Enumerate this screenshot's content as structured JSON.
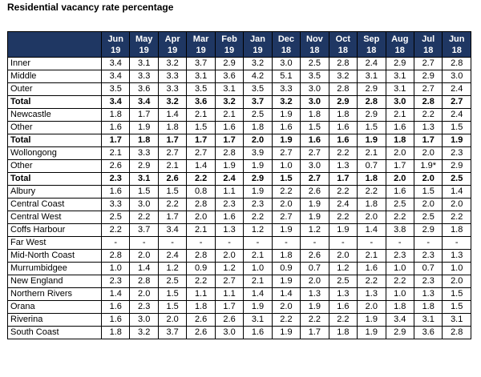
{
  "title": "Residential vacancy rate percentage",
  "columns": [
    [
      "Jun",
      "19"
    ],
    [
      "May",
      "19"
    ],
    [
      "Apr",
      "19"
    ],
    [
      "Mar",
      "19"
    ],
    [
      "Feb",
      "19"
    ],
    [
      "Jan",
      "19"
    ],
    [
      "Dec",
      "18"
    ],
    [
      "Nov",
      "18"
    ],
    [
      "Oct",
      "18"
    ],
    [
      "Sep",
      "18"
    ],
    [
      "Aug",
      "18"
    ],
    [
      "Jul",
      "18"
    ],
    [
      "Jun",
      "18"
    ]
  ],
  "rows": [
    {
      "label": "Inner",
      "total": false,
      "values": [
        "3.4",
        "3.1",
        "3.2",
        "3.7",
        "2.9",
        "3.2",
        "3.0",
        "2.5",
        "2.8",
        "2.4",
        "2.9",
        "2.7",
        "2.8"
      ]
    },
    {
      "label": "Middle",
      "total": false,
      "values": [
        "3.4",
        "3.3",
        "3.3",
        "3.1",
        "3.6",
        "4.2",
        "5.1",
        "3.5",
        "3.2",
        "3.1",
        "3.1",
        "2.9",
        "3.0"
      ]
    },
    {
      "label": "Outer",
      "total": false,
      "values": [
        "3.5",
        "3.6",
        "3.3",
        "3.5",
        "3.1",
        "3.5",
        "3.3",
        "3.0",
        "2.8",
        "2.9",
        "3.1",
        "2.7",
        "2.4"
      ]
    },
    {
      "label": "Total",
      "total": true,
      "values": [
        "3.4",
        "3.4",
        "3.2",
        "3.6",
        "3.2",
        "3.7",
        "3.2",
        "3.0",
        "2.9",
        "2.8",
        "3.0",
        "2.8",
        "2.7"
      ]
    },
    {
      "label": "Newcastle",
      "total": false,
      "values": [
        "1.8",
        "1.7",
        "1.4",
        "2.1",
        "2.1",
        "2.5",
        "1.9",
        "1.8",
        "1.8",
        "2.9",
        "2.1",
        "2.2",
        "2.4"
      ]
    },
    {
      "label": "Other",
      "total": false,
      "values": [
        "1.6",
        "1.9",
        "1.8",
        "1.5",
        "1.6",
        "1.8",
        "1.6",
        "1.5",
        "1.6",
        "1.5",
        "1.6",
        "1.3",
        "1.5"
      ]
    },
    {
      "label": "Total",
      "total": true,
      "values": [
        "1.7",
        "1.8",
        "1.7",
        "1.7",
        "1.7",
        "2.0",
        "1.9",
        "1.6",
        "1.6",
        "1.9",
        "1.8",
        "1.7",
        "1.9"
      ]
    },
    {
      "label": "Wollongong",
      "total": false,
      "values": [
        "2.1",
        "3.3",
        "2.7",
        "2.7",
        "2.8",
        "3.9",
        "2.7",
        "2.7",
        "2.2",
        "2.1",
        "2.0",
        "2.0",
        "2.3"
      ]
    },
    {
      "label": "Other",
      "total": false,
      "values": [
        "2.6",
        "2.9",
        "2.1",
        "1.4",
        "1.9",
        "1.9",
        "1.0",
        "3.0",
        "1.3",
        "0.7",
        "1.7",
        "1.9*",
        "2.9"
      ]
    },
    {
      "label": "Total",
      "total": true,
      "values": [
        "2.3",
        "3.1",
        "2.6",
        "2.2",
        "2.4",
        "2.9",
        "1.5",
        "2.7",
        "1.7",
        "1.8",
        "2.0",
        "2.0",
        "2.5"
      ]
    },
    {
      "label": "Albury",
      "total": false,
      "values": [
        "1.6",
        "1.5",
        "1.5",
        "0.8",
        "1.1",
        "1.9",
        "2.2",
        "2.6",
        "2.2",
        "2.2",
        "1.6",
        "1.5",
        "1.4"
      ]
    },
    {
      "label": "Central Coast",
      "total": false,
      "values": [
        "3.3",
        "3.0",
        "2.2",
        "2.8",
        "2.3",
        "2.3",
        "2.0",
        "1.9",
        "2.4",
        "1.8",
        "2.5",
        "2.0",
        "2.0"
      ]
    },
    {
      "label": "Central West",
      "total": false,
      "values": [
        "2.5",
        "2.2",
        "1.7",
        "2.0",
        "1.6",
        "2.2",
        "2.7",
        "1.9",
        "2.2",
        "2.0",
        "2.2",
        "2.5",
        "2.2"
      ]
    },
    {
      "label": "Coffs Harbour",
      "total": false,
      "values": [
        "2.2",
        "3.7",
        "3.4",
        "2.1",
        "1.3",
        "1.2",
        "1.9",
        "1.2",
        "1.9",
        "1.4",
        "3.8",
        "2.9",
        "1.8"
      ]
    },
    {
      "label": "Far West",
      "total": false,
      "values": [
        "-",
        "-",
        "-",
        "-",
        "-",
        "-",
        "-",
        "-",
        "-",
        "-",
        "-",
        "-",
        "-"
      ]
    },
    {
      "label": "Mid-North Coast",
      "total": false,
      "values": [
        "2.8",
        "2.0",
        "2.4",
        "2.8",
        "2.0",
        "2.1",
        "1.8",
        "2.6",
        "2.0",
        "2.1",
        "2.3",
        "2.3",
        "1.3"
      ]
    },
    {
      "label": "Murrumbidgee",
      "total": false,
      "values": [
        "1.0",
        "1.4",
        "1.2",
        "0.9",
        "1.2",
        "1.0",
        "0.9",
        "0.7",
        "1.2",
        "1.6",
        "1.0",
        "0.7",
        "1.0"
      ]
    },
    {
      "label": "New England",
      "total": false,
      "values": [
        "2.3",
        "2.8",
        "2.5",
        "2.2",
        "2.7",
        "2.1",
        "1.9",
        "2.0",
        "2.5",
        "2.2",
        "2.2",
        "2.3",
        "2.0"
      ]
    },
    {
      "label": "Northern Rivers",
      "total": false,
      "values": [
        "1.4",
        "2.0",
        "1.5",
        "1.1",
        "1.1",
        "1.4",
        "1.4",
        "1.3",
        "1.3",
        "1.3",
        "1.0",
        "1.3",
        "1.5"
      ]
    },
    {
      "label": "Orana",
      "total": false,
      "values": [
        "1.6",
        "2.3",
        "1.5",
        "1.8",
        "1.7",
        "1.9",
        "2.0",
        "1.9",
        "1.6",
        "2.0",
        "1.8",
        "1.8",
        "1.5"
      ]
    },
    {
      "label": "Riverina",
      "total": false,
      "values": [
        "1.6",
        "3.0",
        "2.0",
        "2.6",
        "2.6",
        "3.1",
        "2.2",
        "2.2",
        "2.2",
        "1.9",
        "3.4",
        "3.1",
        "3.1"
      ]
    },
    {
      "label": "South Coast",
      "total": false,
      "values": [
        "1.8",
        "3.2",
        "3.7",
        "2.6",
        "3.0",
        "1.6",
        "1.9",
        "1.7",
        "1.8",
        "1.9",
        "2.9",
        "3.6",
        "2.8"
      ]
    }
  ]
}
